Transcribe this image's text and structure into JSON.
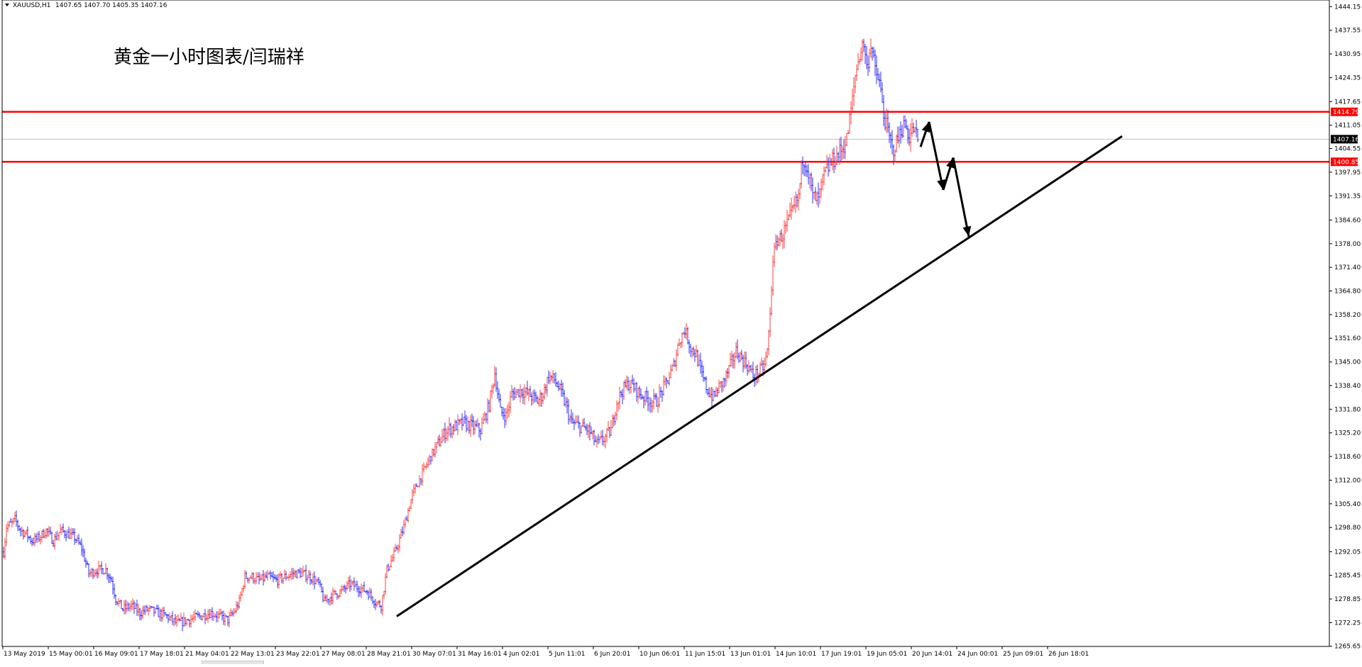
{
  "header": {
    "symbol": "XAUUSD,H1",
    "ohlc": "1407.65 1407.70 1405.35 1407.16"
  },
  "annotation_text": "黄金一小时图表/闫瑞祥",
  "colors": {
    "background": "#ffffff",
    "bull": "#ff4040",
    "bear": "#3030ff",
    "level_line": "#ff0000",
    "price_line": "#c0c0c0",
    "trendline": "#000000",
    "axis": "#000000"
  },
  "chart_data": {
    "type": "candlestick",
    "timeframe": "H1",
    "grid": false,
    "ylim": [
      1265.6,
      1446.0
    ],
    "y_ticks": [
      "1444.15",
      "1437.55",
      "1430.95",
      "1424.35",
      "1417.65",
      "1411.05",
      "1404.55",
      "1397.95",
      "1391.35",
      "1384.60",
      "1378.00",
      "1371.40",
      "1364.80",
      "1358.20",
      "1351.60",
      "1345.00",
      "1338.40",
      "1331.80",
      "1325.20",
      "1318.60",
      "1312.00",
      "1305.40",
      "1298.80",
      "1292.05",
      "1285.45",
      "1278.85",
      "1272.25",
      "1265.65"
    ],
    "x_ticks": [
      "13 May 2019",
      "15 May 00:01",
      "16 May 09:01",
      "17 May 18:01",
      "21 May 04:01",
      "22 May 13:01",
      "23 May 22:01",
      "27 May 08:01",
      "28 May 21:01",
      "30 May 07:01",
      "31 May 16:01",
      "4 Jun 02:01",
      "5 Jun 11:01",
      "6 Jun 20:01",
      "10 Jun 06:01",
      "11 Jun 15:01",
      "13 Jun 01:01",
      "14 Jun 10:01",
      "17 Jun 19:01",
      "19 Jun 05:01",
      "20 Jun 14:01",
      "24 Jun 00:01",
      "25 Jun 09:01",
      "26 Jun 18:01"
    ],
    "bar_count": 470,
    "anchors": [
      [
        0,
        1292
      ],
      [
        2,
        1299
      ],
      [
        6,
        1300
      ],
      [
        8,
        1301
      ],
      [
        12,
        1298
      ],
      [
        16,
        1297
      ],
      [
        20,
        1295
      ],
      [
        25,
        1296
      ],
      [
        30,
        1298
      ],
      [
        35,
        1295
      ],
      [
        40,
        1298
      ],
      [
        45,
        1297
      ],
      [
        50,
        1296
      ],
      [
        55,
        1293
      ],
      [
        60,
        1286
      ],
      [
        66,
        1287
      ],
      [
        72,
        1287
      ],
      [
        76,
        1284
      ],
      [
        79,
        1279
      ],
      [
        84,
        1276
      ],
      [
        90,
        1277
      ],
      [
        96,
        1275
      ],
      [
        102,
        1276
      ],
      [
        108,
        1275
      ],
      [
        115,
        1274
      ],
      [
        122,
        1272
      ],
      [
        130,
        1273
      ],
      [
        138,
        1274
      ],
      [
        146,
        1275
      ],
      [
        152,
        1274
      ],
      [
        158,
        1273
      ],
      [
        162,
        1275
      ],
      [
        166,
        1278
      ],
      [
        170,
        1285
      ],
      [
        175,
        1285
      ],
      [
        180,
        1284
      ],
      [
        186,
        1285
      ],
      [
        192,
        1284
      ],
      [
        198,
        1285
      ],
      [
        204,
        1286
      ],
      [
        210,
        1286
      ],
      [
        216,
        1285
      ],
      [
        222,
        1283
      ],
      [
        226,
        1278
      ],
      [
        232,
        1280
      ],
      [
        238,
        1281
      ],
      [
        244,
        1283
      ],
      [
        250,
        1282
      ],
      [
        256,
        1281
      ],
      [
        262,
        1278
      ],
      [
        266,
        1277
      ],
      [
        270,
        1287
      ],
      [
        276,
        1292
      ],
      [
        282,
        1299
      ],
      [
        288,
        1308
      ],
      [
        294,
        1313
      ],
      [
        300,
        1318
      ],
      [
        306,
        1322
      ],
      [
        312,
        1326
      ],
      [
        318,
        1327
      ],
      [
        324,
        1328
      ],
      [
        330,
        1327
      ],
      [
        336,
        1326
      ],
      [
        342,
        1333
      ],
      [
        346,
        1342
      ],
      [
        350,
        1331
      ],
      [
        354,
        1330
      ],
      [
        358,
        1336
      ],
      [
        364,
        1337
      ],
      [
        370,
        1336
      ],
      [
        376,
        1334
      ],
      [
        380,
        1336
      ],
      [
        384,
        1341
      ],
      [
        388,
        1340
      ],
      [
        392,
        1337
      ],
      [
        396,
        1333
      ],
      [
        400,
        1328
      ],
      [
        406,
        1327
      ],
      [
        412,
        1326
      ],
      [
        418,
        1322
      ],
      [
        424,
        1324
      ],
      [
        428,
        1326
      ],
      [
        432,
        1334
      ],
      [
        436,
        1337
      ],
      [
        440,
        1339
      ],
      [
        444,
        1338
      ],
      [
        448,
        1336
      ],
      [
        452,
        1335
      ],
      [
        456,
        1334
      ],
      [
        460,
        1334
      ],
      [
        464,
        1337
      ],
      [
        468,
        1340
      ],
      [
        472,
        1344
      ],
      [
        476,
        1351
      ],
      [
        480,
        1354
      ],
      [
        484,
        1349
      ],
      [
        488,
        1347
      ],
      [
        492,
        1341
      ],
      [
        496,
        1337
      ],
      [
        500,
        1335
      ],
      [
        504,
        1338
      ],
      [
        508,
        1340
      ],
      [
        512,
        1344
      ],
      [
        516,
        1348
      ],
      [
        520,
        1346
      ],
      [
        524,
        1344
      ],
      [
        528,
        1341
      ],
      [
        532,
        1342
      ],
      [
        536,
        1344
      ],
      [
        538,
        1348
      ],
      [
        540,
        1358
      ],
      [
        542,
        1374
      ],
      [
        545,
        1379
      ],
      [
        548,
        1380
      ],
      [
        552,
        1383
      ],
      [
        556,
        1387
      ],
      [
        560,
        1391
      ],
      [
        563,
        1402
      ],
      [
        566,
        1400
      ],
      [
        570,
        1391
      ],
      [
        574,
        1390
      ],
      [
        578,
        1397
      ],
      [
        582,
        1400
      ],
      [
        586,
        1402
      ],
      [
        590,
        1404
      ],
      [
        594,
        1407
      ],
      [
        598,
        1418
      ],
      [
        600,
        1425
      ],
      [
        603,
        1431
      ],
      [
        606,
        1434
      ],
      [
        608,
        1427
      ],
      [
        611,
        1434
      ],
      [
        614,
        1426
      ],
      [
        617,
        1423
      ],
      [
        620,
        1414
      ],
      [
        623,
        1409
      ],
      [
        626,
        1404
      ],
      [
        629,
        1406
      ],
      [
        632,
        1410
      ],
      [
        635,
        1411
      ],
      [
        638,
        1408
      ],
      [
        641,
        1410
      ],
      [
        644,
        1407
      ]
    ],
    "levels": [
      {
        "value": 1414.79,
        "label": "1414.79",
        "color": "#ff0000"
      },
      {
        "value": 1400.85,
        "label": "1400.85",
        "color": "#ff0000"
      }
    ],
    "current_price": {
      "value": 1407.16,
      "label": "1407.16"
    },
    "trendline": {
      "from": [
        277,
        1274
      ],
      "to": [
        788,
        1408
      ]
    },
    "arrows": [
      {
        "from": [
          646,
          1405
        ],
        "to": [
          652,
          1412
        ]
      },
      {
        "from": [
          652,
          1412
        ],
        "to": [
          662,
          1393
        ]
      },
      {
        "from": [
          662,
          1393
        ],
        "to": [
          669,
          1402
        ]
      },
      {
        "from": [
          669,
          1402
        ],
        "to": [
          680,
          1380
        ]
      }
    ]
  }
}
